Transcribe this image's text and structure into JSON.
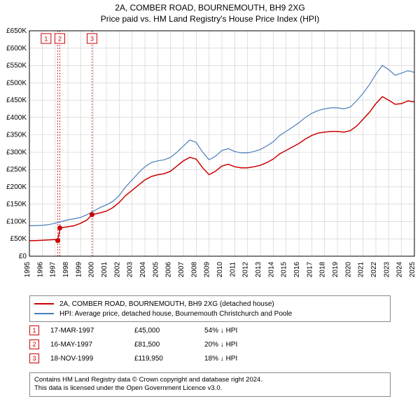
{
  "title_line1": "2A, COMBER ROAD, BOURNEMOUTH, BH9 2XG",
  "title_line2": "Price paid vs. HM Land Registry's House Price Index (HPI)",
  "chart": {
    "type": "line",
    "background_color": "#ffffff",
    "grid_color": "#cccccc",
    "axis_color": "#000000",
    "label_fontsize": 10,
    "xlim": [
      1995,
      2025
    ],
    "ylim": [
      0,
      650000
    ],
    "ytick_step": 50000,
    "ytick_labels": [
      "£0",
      "£50K",
      "£100K",
      "£150K",
      "£200K",
      "£250K",
      "£300K",
      "£350K",
      "£400K",
      "£450K",
      "£500K",
      "£550K",
      "£600K",
      "£650K"
    ],
    "xtick_years": [
      1995,
      1996,
      1997,
      1998,
      1999,
      2000,
      2001,
      2002,
      2003,
      2004,
      2005,
      2006,
      2007,
      2008,
      2009,
      2010,
      2011,
      2012,
      2013,
      2014,
      2015,
      2016,
      2017,
      2018,
      2019,
      2020,
      2021,
      2022,
      2023,
      2024,
      2025
    ],
    "series": [
      {
        "name": "property",
        "color": "#cc0000",
        "line_width": 1.5,
        "points": [
          [
            1995.0,
            45000
          ],
          [
            1995.5,
            45000
          ],
          [
            1996.0,
            46000
          ],
          [
            1996.5,
            47000
          ],
          [
            1997.0,
            48000
          ],
          [
            1997.2,
            45000
          ],
          [
            1997.4,
            81500
          ],
          [
            1998.0,
            85000
          ],
          [
            1998.5,
            88000
          ],
          [
            1999.0,
            95000
          ],
          [
            1999.5,
            105000
          ],
          [
            1999.88,
            119950
          ],
          [
            2000.5,
            125000
          ],
          [
            2001.0,
            130000
          ],
          [
            2001.5,
            140000
          ],
          [
            2002.0,
            155000
          ],
          [
            2002.5,
            175000
          ],
          [
            2003.0,
            190000
          ],
          [
            2003.5,
            205000
          ],
          [
            2004.0,
            220000
          ],
          [
            2004.5,
            230000
          ],
          [
            2005.0,
            235000
          ],
          [
            2005.5,
            238000
          ],
          [
            2006.0,
            245000
          ],
          [
            2006.5,
            260000
          ],
          [
            2007.0,
            275000
          ],
          [
            2007.5,
            285000
          ],
          [
            2008.0,
            280000
          ],
          [
            2008.5,
            255000
          ],
          [
            2009.0,
            235000
          ],
          [
            2009.5,
            245000
          ],
          [
            2010.0,
            260000
          ],
          [
            2010.5,
            265000
          ],
          [
            2011.0,
            258000
          ],
          [
            2011.5,
            255000
          ],
          [
            2012.0,
            255000
          ],
          [
            2012.5,
            258000
          ],
          [
            2013.0,
            262000
          ],
          [
            2013.5,
            270000
          ],
          [
            2014.0,
            280000
          ],
          [
            2014.5,
            295000
          ],
          [
            2015.0,
            305000
          ],
          [
            2015.5,
            315000
          ],
          [
            2016.0,
            325000
          ],
          [
            2016.5,
            338000
          ],
          [
            2017.0,
            348000
          ],
          [
            2017.5,
            355000
          ],
          [
            2018.0,
            358000
          ],
          [
            2018.5,
            360000
          ],
          [
            2019.0,
            360000
          ],
          [
            2019.5,
            358000
          ],
          [
            2020.0,
            362000
          ],
          [
            2020.5,
            375000
          ],
          [
            2021.0,
            395000
          ],
          [
            2021.5,
            415000
          ],
          [
            2022.0,
            440000
          ],
          [
            2022.5,
            460000
          ],
          [
            2023.0,
            450000
          ],
          [
            2023.5,
            438000
          ],
          [
            2024.0,
            440000
          ],
          [
            2024.5,
            448000
          ],
          [
            2025.0,
            445000
          ]
        ]
      },
      {
        "name": "hpi",
        "color": "#4a7ebb",
        "line_width": 1.2,
        "points": [
          [
            1995.0,
            88000
          ],
          [
            1995.5,
            88000
          ],
          [
            1996.0,
            89000
          ],
          [
            1996.5,
            91000
          ],
          [
            1997.0,
            95000
          ],
          [
            1997.5,
            100000
          ],
          [
            1998.0,
            105000
          ],
          [
            1998.5,
            108000
          ],
          [
            1999.0,
            112000
          ],
          [
            1999.5,
            120000
          ],
          [
            2000.0,
            130000
          ],
          [
            2000.5,
            140000
          ],
          [
            2001.0,
            148000
          ],
          [
            2001.5,
            158000
          ],
          [
            2002.0,
            175000
          ],
          [
            2002.5,
            200000
          ],
          [
            2003.0,
            220000
          ],
          [
            2003.5,
            240000
          ],
          [
            2004.0,
            258000
          ],
          [
            2004.5,
            270000
          ],
          [
            2005.0,
            275000
          ],
          [
            2005.5,
            278000
          ],
          [
            2006.0,
            285000
          ],
          [
            2006.5,
            300000
          ],
          [
            2007.0,
            318000
          ],
          [
            2007.5,
            335000
          ],
          [
            2008.0,
            328000
          ],
          [
            2008.5,
            300000
          ],
          [
            2009.0,
            278000
          ],
          [
            2009.5,
            288000
          ],
          [
            2010.0,
            305000
          ],
          [
            2010.5,
            310000
          ],
          [
            2011.0,
            302000
          ],
          [
            2011.5,
            298000
          ],
          [
            2012.0,
            298000
          ],
          [
            2012.5,
            302000
          ],
          [
            2013.0,
            308000
          ],
          [
            2013.5,
            318000
          ],
          [
            2014.0,
            330000
          ],
          [
            2014.5,
            348000
          ],
          [
            2015.0,
            360000
          ],
          [
            2015.5,
            372000
          ],
          [
            2016.0,
            385000
          ],
          [
            2016.5,
            400000
          ],
          [
            2017.0,
            412000
          ],
          [
            2017.5,
            420000
          ],
          [
            2018.0,
            425000
          ],
          [
            2018.5,
            428000
          ],
          [
            2019.0,
            428000
          ],
          [
            2019.5,
            425000
          ],
          [
            2020.0,
            430000
          ],
          [
            2020.5,
            448000
          ],
          [
            2021.0,
            470000
          ],
          [
            2021.5,
            495000
          ],
          [
            2022.0,
            525000
          ],
          [
            2022.5,
            550000
          ],
          [
            2023.0,
            538000
          ],
          [
            2023.5,
            522000
          ],
          [
            2024.0,
            528000
          ],
          [
            2024.5,
            535000
          ],
          [
            2025.0,
            530000
          ]
        ]
      }
    ],
    "sale_markers": [
      {
        "id": 1,
        "x": 1997.21,
        "y": 45000,
        "color": "#cc0000"
      },
      {
        "id": 2,
        "x": 1997.37,
        "y": 81500,
        "color": "#cc0000"
      },
      {
        "id": 3,
        "x": 1999.88,
        "y": 119950,
        "color": "#cc0000"
      }
    ],
    "annot_boxes": [
      {
        "id": "1",
        "color": "#cc0000",
        "x": 1996.3
      },
      {
        "id": "2",
        "color": "#cc0000",
        "x": 1997.37
      },
      {
        "id": "3",
        "color": "#cc0000",
        "x": 1999.88
      }
    ]
  },
  "legend": {
    "items": [
      {
        "label": "2A, COMBER ROAD, BOURNEMOUTH, BH9 2XG (detached house)",
        "color": "#cc0000"
      },
      {
        "label": "HPI: Average price, detached house, Bournemouth Christchurch and Poole",
        "color": "#4a7ebb"
      }
    ]
  },
  "annotations": [
    {
      "id": "1",
      "color": "#cc0000",
      "date": "17-MAR-1997",
      "price": "£45,000",
      "diff": "54% ↓ HPI"
    },
    {
      "id": "2",
      "color": "#cc0000",
      "date": "16-MAY-1997",
      "price": "£81,500",
      "diff": "20% ↓ HPI"
    },
    {
      "id": "3",
      "color": "#cc0000",
      "date": "18-NOV-1999",
      "price": "£119,950",
      "diff": "18% ↓ HPI"
    }
  ],
  "footer": {
    "line1": "Contains HM Land Registry data © Crown copyright and database right 2024.",
    "line2": "This data is licensed under the Open Government Licence v3.0."
  }
}
